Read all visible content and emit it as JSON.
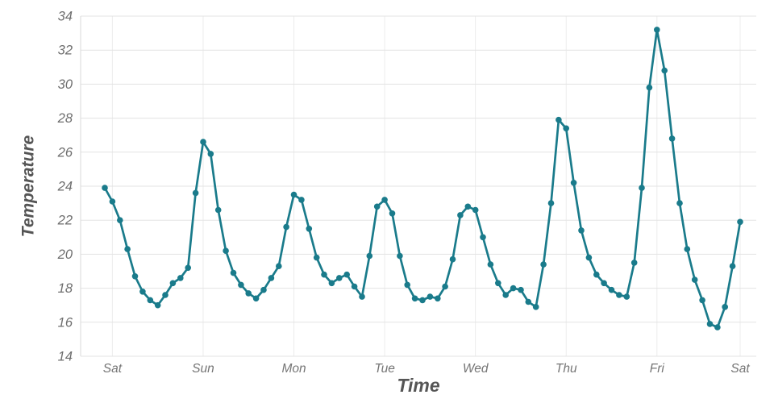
{
  "chart_data": {
    "type": "line",
    "title": "",
    "xlabel": "Time",
    "ylabel": "Temperature",
    "x_tick_labels": [
      "Sat",
      "Sun",
      "Mon",
      "Tue",
      "Wed",
      "Thu",
      "Fri",
      "Sat"
    ],
    "x_tick_indices": [
      1,
      13,
      25,
      37,
      49,
      61,
      73,
      84
    ],
    "y_ticks": [
      14,
      16,
      18,
      20,
      22,
      24,
      26,
      28,
      30,
      32,
      34
    ],
    "ylim": [
      14,
      34
    ],
    "grid": true,
    "legend": "none",
    "marker": "circle",
    "series": [
      {
        "name": "Temperature",
        "values": [
          23.9,
          23.1,
          22.0,
          20.3,
          18.7,
          17.8,
          17.3,
          17.0,
          17.6,
          18.3,
          18.6,
          19.2,
          23.6,
          26.6,
          25.9,
          22.6,
          20.2,
          18.9,
          18.2,
          17.7,
          17.4,
          17.9,
          18.6,
          19.3,
          21.6,
          23.5,
          23.2,
          21.5,
          19.8,
          18.8,
          18.3,
          18.6,
          18.8,
          18.1,
          17.5,
          19.9,
          22.8,
          23.2,
          22.4,
          19.9,
          18.2,
          17.4,
          17.3,
          17.5,
          17.4,
          18.1,
          19.7,
          22.3,
          22.8,
          22.6,
          21.0,
          19.4,
          18.3,
          17.6,
          18.0,
          17.9,
          17.2,
          16.9,
          19.4,
          23.0,
          27.9,
          27.4,
          24.2,
          21.4,
          19.8,
          18.8,
          18.3,
          17.9,
          17.6,
          17.5,
          19.5,
          23.9,
          29.8,
          33.2,
          30.8,
          26.8,
          23.0,
          20.3,
          18.5,
          17.3,
          15.9,
          15.7,
          16.9,
          19.3,
          21.9
        ]
      }
    ]
  },
  "colors": {
    "line": "#1a7b8b",
    "marker": "#1a7b8b",
    "grid_horizontal": "#e3e3e3",
    "grid_vertical": "#ececec",
    "spine": "#d9d9d9",
    "tick_label": "#757575",
    "axis_label": "#555555",
    "background": "#ffffff"
  }
}
